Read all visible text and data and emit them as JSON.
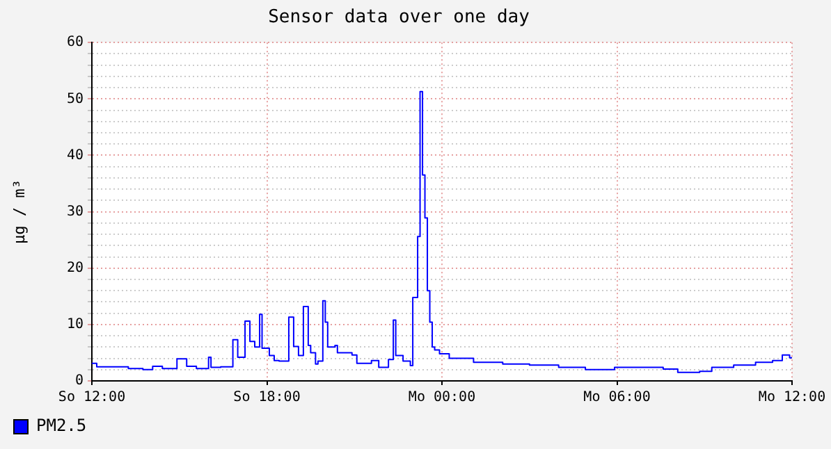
{
  "chart_data": {
    "type": "step",
    "title": "Sensor data over one day",
    "ylabel": "µg / m³",
    "categories": [
      "So 12:00",
      null,
      null,
      null,
      null,
      null,
      null,
      null,
      null,
      null,
      null,
      null,
      null,
      null,
      null,
      null,
      null,
      null,
      null,
      null,
      null,
      null,
      null,
      null,
      null,
      null,
      null,
      null,
      null,
      null,
      null,
      null,
      null,
      null,
      null,
      null,
      null,
      null,
      null,
      null,
      null,
      null,
      null,
      null,
      null,
      null,
      null,
      null,
      null,
      null,
      null,
      null,
      null,
      null,
      null,
      null,
      null,
      null,
      null,
      null,
      null,
      null,
      null,
      null,
      null,
      null,
      null,
      null,
      null,
      null,
      null,
      null,
      "So 18:00",
      null,
      null,
      null,
      null,
      null,
      null,
      null,
      null,
      null,
      null,
      null,
      null,
      null,
      null,
      null,
      null,
      null,
      null,
      null,
      null,
      null,
      null,
      null,
      null,
      null,
      null,
      null,
      null,
      null,
      null,
      null,
      null,
      null,
      null,
      null,
      null,
      null,
      null,
      null,
      null,
      null,
      null,
      null,
      null,
      null,
      null,
      null,
      null,
      null,
      null,
      null,
      null,
      null,
      null,
      null,
      null,
      null,
      null,
      null,
      null,
      null,
      null,
      null,
      null,
      null,
      null,
      null,
      null,
      null,
      null,
      null,
      "Mo 00:00",
      null,
      null,
      null,
      null,
      null,
      null,
      null,
      null,
      null,
      null,
      null,
      null,
      null,
      null,
      null,
      null,
      null,
      null,
      null,
      null,
      null,
      null,
      null,
      null,
      null,
      null,
      null,
      null,
      null,
      null,
      null,
      null,
      null,
      null,
      null,
      null,
      null,
      null,
      null,
      null,
      null,
      null,
      null,
      null,
      null,
      null,
      null,
      null,
      null,
      null,
      null,
      null,
      null,
      null,
      null,
      null,
      null,
      null,
      null,
      null,
      null,
      null,
      null,
      null,
      null,
      null,
      null,
      null,
      null,
      null,
      null,
      "Mo 06:00",
      null,
      null,
      null,
      null,
      null,
      null,
      null,
      null,
      null,
      null,
      null,
      null,
      null,
      null,
      null,
      null,
      null,
      null,
      null,
      null,
      null,
      null,
      null,
      null,
      null,
      null,
      null,
      null,
      null,
      null,
      null,
      null,
      null,
      null,
      null,
      null,
      null,
      null,
      null,
      null,
      null,
      null,
      null,
      null,
      null,
      null,
      null,
      null,
      null,
      null,
      null,
      null,
      null,
      null,
      null,
      null,
      null,
      null,
      null,
      null,
      null,
      null,
      null,
      null,
      null,
      null,
      null,
      null,
      null,
      null,
      null,
      "Mo 12:00"
    ],
    "ylim": [
      0,
      60
    ],
    "yticks": [
      0,
      {
        "value": 2,
        "label": null
      },
      {
        "value": 4,
        "label": null
      },
      {
        "value": 6,
        "label": null
      },
      {
        "value": 8,
        "label": null
      },
      10,
      {
        "value": 12,
        "label": null
      },
      {
        "value": 14,
        "label": null
      },
      {
        "value": 16,
        "label": null
      },
      {
        "value": 18,
        "label": null
      },
      20,
      {
        "value": 22,
        "label": null
      },
      {
        "value": 24,
        "label": null
      },
      {
        "value": 26,
        "label": null
      },
      {
        "value": 28,
        "label": null
      },
      30,
      {
        "value": 32,
        "label": null
      },
      {
        "value": 34,
        "label": null
      },
      {
        "value": 36,
        "label": null
      },
      {
        "value": 38,
        "label": null
      },
      40,
      {
        "value": 42,
        "label": null
      },
      {
        "value": 44,
        "label": null
      },
      {
        "value": 46,
        "label": null
      },
      {
        "value": 48,
        "label": null
      },
      50,
      {
        "value": 52,
        "label": null
      },
      {
        "value": 54,
        "label": null
      },
      {
        "value": 56,
        "label": null
      },
      {
        "value": 58,
        "label": null
      },
      60
    ],
    "grid": true,
    "legend": "bottom left",
    "series": [
      {
        "name": "PM2.5",
        "color": "#0000ff",
        "values": [
          3.1,
          3.1,
          3.1,
          2.5,
          2.5,
          2.5,
          2.5,
          2.5,
          2.5,
          2.5,
          2.5,
          2.5,
          2.5,
          2.5,
          2.5,
          2.5,
          2.2,
          2.2,
          2.2,
          2.2,
          2.2,
          2.2,
          2.0,
          2.0,
          2.0,
          2.0,
          2.6,
          2.6,
          2.6,
          2.6,
          2.2,
          2.2,
          2.2,
          2.2,
          2.2,
          2.2,
          3.9,
          3.9,
          3.9,
          3.9,
          2.6,
          2.6,
          2.6,
          2.6,
          2.2,
          2.2,
          2.2,
          2.2,
          2.2,
          4.2,
          2.4,
          2.4,
          2.4,
          2.4,
          2.5,
          2.5,
          2.5,
          2.5,
          2.5,
          7.3,
          7.3,
          4.2,
          4.2,
          4.2,
          10.6,
          10.6,
          7.0,
          7.0,
          6.0,
          6.0,
          11.8,
          5.8,
          5.8,
          5.8,
          4.5,
          4.5,
          3.6,
          3.6,
          3.5,
          3.5,
          3.5,
          3.5,
          11.3,
          11.3,
          6.1,
          6.1,
          4.5,
          4.5,
          13.2,
          13.2,
          6.3,
          5.0,
          5.0,
          3.0,
          3.5,
          3.5,
          14.2,
          10.4,
          6.0,
          6.0,
          6.0,
          6.3,
          5.0,
          5.0,
          5.0,
          5.0,
          5.0,
          5.0,
          4.6,
          4.6,
          3.1,
          3.1,
          3.1,
          3.1,
          3.1,
          3.1,
          3.6,
          3.6,
          3.6,
          2.4,
          2.4,
          2.4,
          2.4,
          3.8,
          3.8,
          10.8,
          4.5,
          4.5,
          4.5,
          3.5,
          3.5,
          3.5,
          2.7,
          14.8,
          14.8,
          25.6,
          51.3,
          36.5,
          28.9,
          16.0,
          10.4,
          6.0,
          5.5,
          5.5,
          4.8,
          4.8,
          4.8,
          4.8,
          4.0,
          4.0,
          4.0,
          4.0,
          4.0,
          4.0,
          4.0,
          4.0,
          4.0,
          4.0,
          3.3,
          3.3,
          3.3,
          3.3,
          3.3,
          3.3,
          3.3,
          3.3,
          3.3,
          3.3,
          3.3,
          3.3,
          3.0,
          3.0,
          3.0,
          3.0,
          3.0,
          3.0,
          3.0,
          3.0,
          3.0,
          3.0,
          3.0,
          2.8,
          2.8,
          2.8,
          2.8,
          2.8,
          2.8,
          2.8,
          2.8,
          2.8,
          2.8,
          2.8,
          2.8,
          2.4,
          2.4,
          2.4,
          2.4,
          2.4,
          2.4,
          2.4,
          2.4,
          2.4,
          2.4,
          2.4,
          2.0,
          2.0,
          2.0,
          2.0,
          2.0,
          2.0,
          2.0,
          2.0,
          2.0,
          2.0,
          2.0,
          2.0,
          2.4,
          2.4,
          2.4,
          2.4,
          2.4,
          2.4,
          2.4,
          2.4,
          2.4,
          2.4,
          2.4,
          2.4,
          2.4,
          2.4,
          2.4,
          2.4,
          2.4,
          2.4,
          2.4,
          2.4,
          2.1,
          2.1,
          2.1,
          2.1,
          2.1,
          2.1,
          1.5,
          1.5,
          1.5,
          1.5,
          1.5,
          1.5,
          1.5,
          1.5,
          1.5,
          1.7,
          1.7,
          1.7,
          1.7,
          1.7,
          2.4,
          2.4,
          2.4,
          2.4,
          2.4,
          2.4,
          2.4,
          2.4,
          2.4,
          2.8,
          2.8,
          2.8,
          2.8,
          2.8,
          2.8,
          2.8,
          2.8,
          2.8,
          3.3,
          3.3,
          3.3,
          3.3,
          3.3,
          3.3,
          3.3,
          3.6,
          3.6,
          3.6,
          3.6,
          4.6,
          4.6,
          4.6,
          4.1
        ]
      }
    ]
  }
}
